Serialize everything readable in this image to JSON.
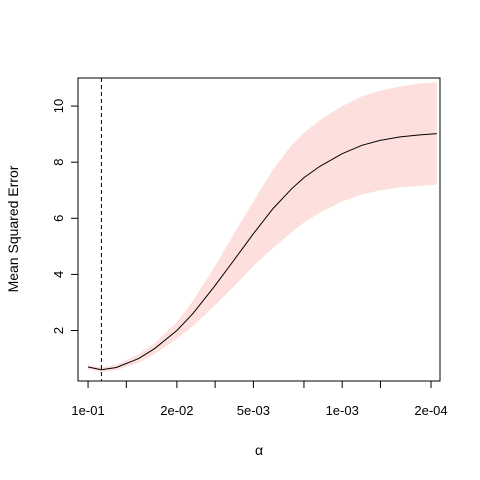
{
  "chart_data": {
    "type": "line",
    "xlabel": "α",
    "ylabel": "Mean Squared Error",
    "x_scale": "log-reversed",
    "xlim": [
      0.12,
      0.00017
    ],
    "ylim": [
      0.2,
      11.0
    ],
    "x_ticks": [
      {
        "value": 0.1,
        "label": "1e-01"
      },
      {
        "value": 0.05,
        "label": ""
      },
      {
        "value": 0.02,
        "label": "2e-02"
      },
      {
        "value": 0.01,
        "label": ""
      },
      {
        "value": 0.005,
        "label": "5e-03"
      },
      {
        "value": 0.002,
        "label": ""
      },
      {
        "value": 0.001,
        "label": "1e-03"
      },
      {
        "value": 0.0005,
        "label": ""
      },
      {
        "value": 0.0002,
        "label": "2e-04"
      }
    ],
    "y_ticks": [
      {
        "value": 2,
        "label": "2"
      },
      {
        "value": 4,
        "label": "4"
      },
      {
        "value": 6,
        "label": "6"
      },
      {
        "value": 8,
        "label": "8"
      },
      {
        "value": 10,
        "label": "10"
      }
    ],
    "vline_x": 0.0785,
    "line_color": "#000000",
    "band_color": "#fde0dd",
    "series": [
      {
        "x": [
          0.1,
          0.0785,
          0.06,
          0.04,
          0.03,
          0.02,
          0.015,
          0.01,
          0.007,
          0.005,
          0.0035,
          0.0025,
          0.002,
          0.0015,
          0.001,
          0.0007,
          0.0005,
          0.00035,
          0.00025,
          0.00018
        ],
        "y": [
          0.7,
          0.6,
          0.68,
          1.0,
          1.35,
          2.0,
          2.6,
          3.6,
          4.55,
          5.45,
          6.35,
          7.05,
          7.45,
          7.85,
          8.3,
          8.6,
          8.78,
          8.9,
          8.97,
          9.02
        ],
        "lower": [
          0.62,
          0.52,
          0.58,
          0.85,
          1.15,
          1.7,
          2.15,
          2.9,
          3.6,
          4.3,
          4.95,
          5.5,
          5.85,
          6.2,
          6.6,
          6.85,
          7.0,
          7.1,
          7.15,
          7.2
        ],
        "upper": [
          0.78,
          0.68,
          0.78,
          1.15,
          1.55,
          2.3,
          3.05,
          4.3,
          5.5,
          6.6,
          7.75,
          8.6,
          9.05,
          9.5,
          10.0,
          10.35,
          10.55,
          10.7,
          10.8,
          10.85
        ]
      }
    ]
  }
}
